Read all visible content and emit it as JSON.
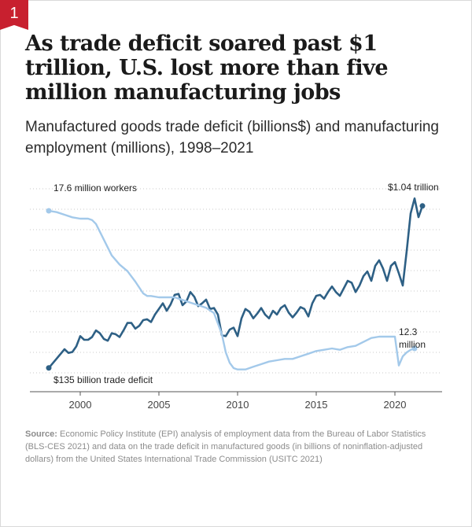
{
  "badge": "1",
  "title": "As trade deficit soared past $1 trillion, U.S. lost more than five million manufacturing jobs",
  "subtitle": "Manufactured goods trade deficit (billions$) and manufacturing employment (millions), 1998–2021",
  "source_label": "Source:",
  "source_text": "Economic Policy Institute (EPI) analysis of employment data from the Bureau of Labor Statistics (BLS-CES 2021) and data on the trade deficit in manufactured goods (in billions of noninflation-adjusted dollars) from the United States International Trade Commission (USITC 2021)",
  "colors": {
    "deficit": "#2e6085",
    "employment": "#a3c9ea",
    "grid": "#c8c8c8",
    "badge": "#c8202f"
  },
  "chart_data": {
    "type": "line",
    "title": "Manufactured goods trade deficit (billions$) and manufacturing employment (millions), 1998–2021",
    "x_ticks": [
      2000,
      2005,
      2010,
      2015,
      2020
    ],
    "xlim": [
      1997,
      2023
    ],
    "grid": "horizontal dotted",
    "annotations": {
      "employment_start": "17.6 million workers",
      "deficit_end": "$1.04 trillion",
      "employment_end": "12.3 million",
      "deficit_start": "$135 billion trade deficit"
    },
    "series": [
      {
        "key": "deficit",
        "label_units": "billions$",
        "ylim": [
          50,
          1100
        ],
        "points": [
          [
            1998.0,
            135
          ],
          [
            1998.5,
            185
          ],
          [
            1999.0,
            235
          ],
          [
            1999.25,
            215
          ],
          [
            1999.5,
            220
          ],
          [
            1999.75,
            250
          ],
          [
            2000.0,
            305
          ],
          [
            2000.25,
            285
          ],
          [
            2000.5,
            285
          ],
          [
            2000.75,
            300
          ],
          [
            2001.0,
            335
          ],
          [
            2001.25,
            320
          ],
          [
            2001.5,
            290
          ],
          [
            2001.75,
            280
          ],
          [
            2002.0,
            320
          ],
          [
            2002.25,
            315
          ],
          [
            2002.5,
            300
          ],
          [
            2002.75,
            335
          ],
          [
            2003.0,
            375
          ],
          [
            2003.25,
            375
          ],
          [
            2003.5,
            345
          ],
          [
            2003.75,
            360
          ],
          [
            2004.0,
            390
          ],
          [
            2004.25,
            395
          ],
          [
            2004.5,
            380
          ],
          [
            2004.75,
            420
          ],
          [
            2005.0,
            450
          ],
          [
            2005.25,
            480
          ],
          [
            2005.5,
            440
          ],
          [
            2005.75,
            475
          ],
          [
            2006.0,
            525
          ],
          [
            2006.25,
            530
          ],
          [
            2006.5,
            470
          ],
          [
            2006.75,
            490
          ],
          [
            2007.0,
            540
          ],
          [
            2007.25,
            515
          ],
          [
            2007.5,
            465
          ],
          [
            2007.75,
            480
          ],
          [
            2008.0,
            500
          ],
          [
            2008.25,
            450
          ],
          [
            2008.5,
            455
          ],
          [
            2008.75,
            420
          ],
          [
            2009.0,
            310
          ],
          [
            2009.25,
            305
          ],
          [
            2009.5,
            340
          ],
          [
            2009.75,
            350
          ],
          [
            2010.0,
            305
          ],
          [
            2010.25,
            400
          ],
          [
            2010.5,
            450
          ],
          [
            2010.75,
            435
          ],
          [
            2011.0,
            400
          ],
          [
            2011.25,
            425
          ],
          [
            2011.5,
            455
          ],
          [
            2011.75,
            420
          ],
          [
            2012.0,
            400
          ],
          [
            2012.25,
            440
          ],
          [
            2012.5,
            420
          ],
          [
            2012.75,
            455
          ],
          [
            2013.0,
            470
          ],
          [
            2013.25,
            430
          ],
          [
            2013.5,
            405
          ],
          [
            2013.75,
            430
          ],
          [
            2014.0,
            460
          ],
          [
            2014.25,
            450
          ],
          [
            2014.5,
            410
          ],
          [
            2014.75,
            480
          ],
          [
            2015.0,
            520
          ],
          [
            2015.25,
            525
          ],
          [
            2015.5,
            505
          ],
          [
            2015.75,
            540
          ],
          [
            2016.0,
            570
          ],
          [
            2016.25,
            540
          ],
          [
            2016.5,
            520
          ],
          [
            2016.75,
            560
          ],
          [
            2017.0,
            600
          ],
          [
            2017.25,
            590
          ],
          [
            2017.5,
            540
          ],
          [
            2017.75,
            575
          ],
          [
            2018.0,
            625
          ],
          [
            2018.25,
            650
          ],
          [
            2018.5,
            600
          ],
          [
            2018.75,
            680
          ],
          [
            2019.0,
            710
          ],
          [
            2019.25,
            665
          ],
          [
            2019.5,
            600
          ],
          [
            2019.75,
            680
          ],
          [
            2020.0,
            700
          ],
          [
            2020.25,
            640
          ],
          [
            2020.5,
            575
          ],
          [
            2020.75,
            760
          ],
          [
            2021.0,
            960
          ],
          [
            2021.25,
            1040
          ],
          [
            2021.5,
            940
          ],
          [
            2021.75,
            1000
          ]
        ]
      },
      {
        "key": "employment",
        "label_units": "millions",
        "ylim": [
          11.0,
          18.5
        ],
        "points": [
          [
            1998.0,
            17.6
          ],
          [
            1998.5,
            17.55
          ],
          [
            1999.0,
            17.45
          ],
          [
            1999.5,
            17.35
          ],
          [
            2000.0,
            17.3
          ],
          [
            2000.5,
            17.3
          ],
          [
            2000.75,
            17.25
          ],
          [
            2001.0,
            17.1
          ],
          [
            2001.25,
            16.8
          ],
          [
            2001.5,
            16.5
          ],
          [
            2001.75,
            16.2
          ],
          [
            2002.0,
            15.9
          ],
          [
            2002.5,
            15.55
          ],
          [
            2003.0,
            15.3
          ],
          [
            2003.5,
            14.9
          ],
          [
            2004.0,
            14.45
          ],
          [
            2004.25,
            14.35
          ],
          [
            2004.5,
            14.35
          ],
          [
            2005.0,
            14.3
          ],
          [
            2005.5,
            14.3
          ],
          [
            2006.0,
            14.3
          ],
          [
            2006.5,
            14.2
          ],
          [
            2007.0,
            14.1
          ],
          [
            2007.5,
            14.0
          ],
          [
            2008.0,
            13.9
          ],
          [
            2008.5,
            13.7
          ],
          [
            2009.0,
            12.9
          ],
          [
            2009.25,
            12.2
          ],
          [
            2009.5,
            11.8
          ],
          [
            2009.75,
            11.6
          ],
          [
            2010.0,
            11.55
          ],
          [
            2010.5,
            11.55
          ],
          [
            2011.0,
            11.65
          ],
          [
            2011.5,
            11.75
          ],
          [
            2012.0,
            11.85
          ],
          [
            2012.5,
            11.9
          ],
          [
            2013.0,
            11.95
          ],
          [
            2013.5,
            11.95
          ],
          [
            2014.0,
            12.05
          ],
          [
            2014.5,
            12.15
          ],
          [
            2015.0,
            12.25
          ],
          [
            2015.5,
            12.3
          ],
          [
            2016.0,
            12.35
          ],
          [
            2016.5,
            12.3
          ],
          [
            2017.0,
            12.4
          ],
          [
            2017.5,
            12.45
          ],
          [
            2018.0,
            12.6
          ],
          [
            2018.5,
            12.75
          ],
          [
            2019.0,
            12.8
          ],
          [
            2019.5,
            12.8
          ],
          [
            2020.0,
            12.8
          ],
          [
            2020.25,
            11.7
          ],
          [
            2020.5,
            12.05
          ],
          [
            2020.75,
            12.2
          ],
          [
            2021.0,
            12.3
          ],
          [
            2021.25,
            12.35
          ]
        ]
      }
    ]
  }
}
